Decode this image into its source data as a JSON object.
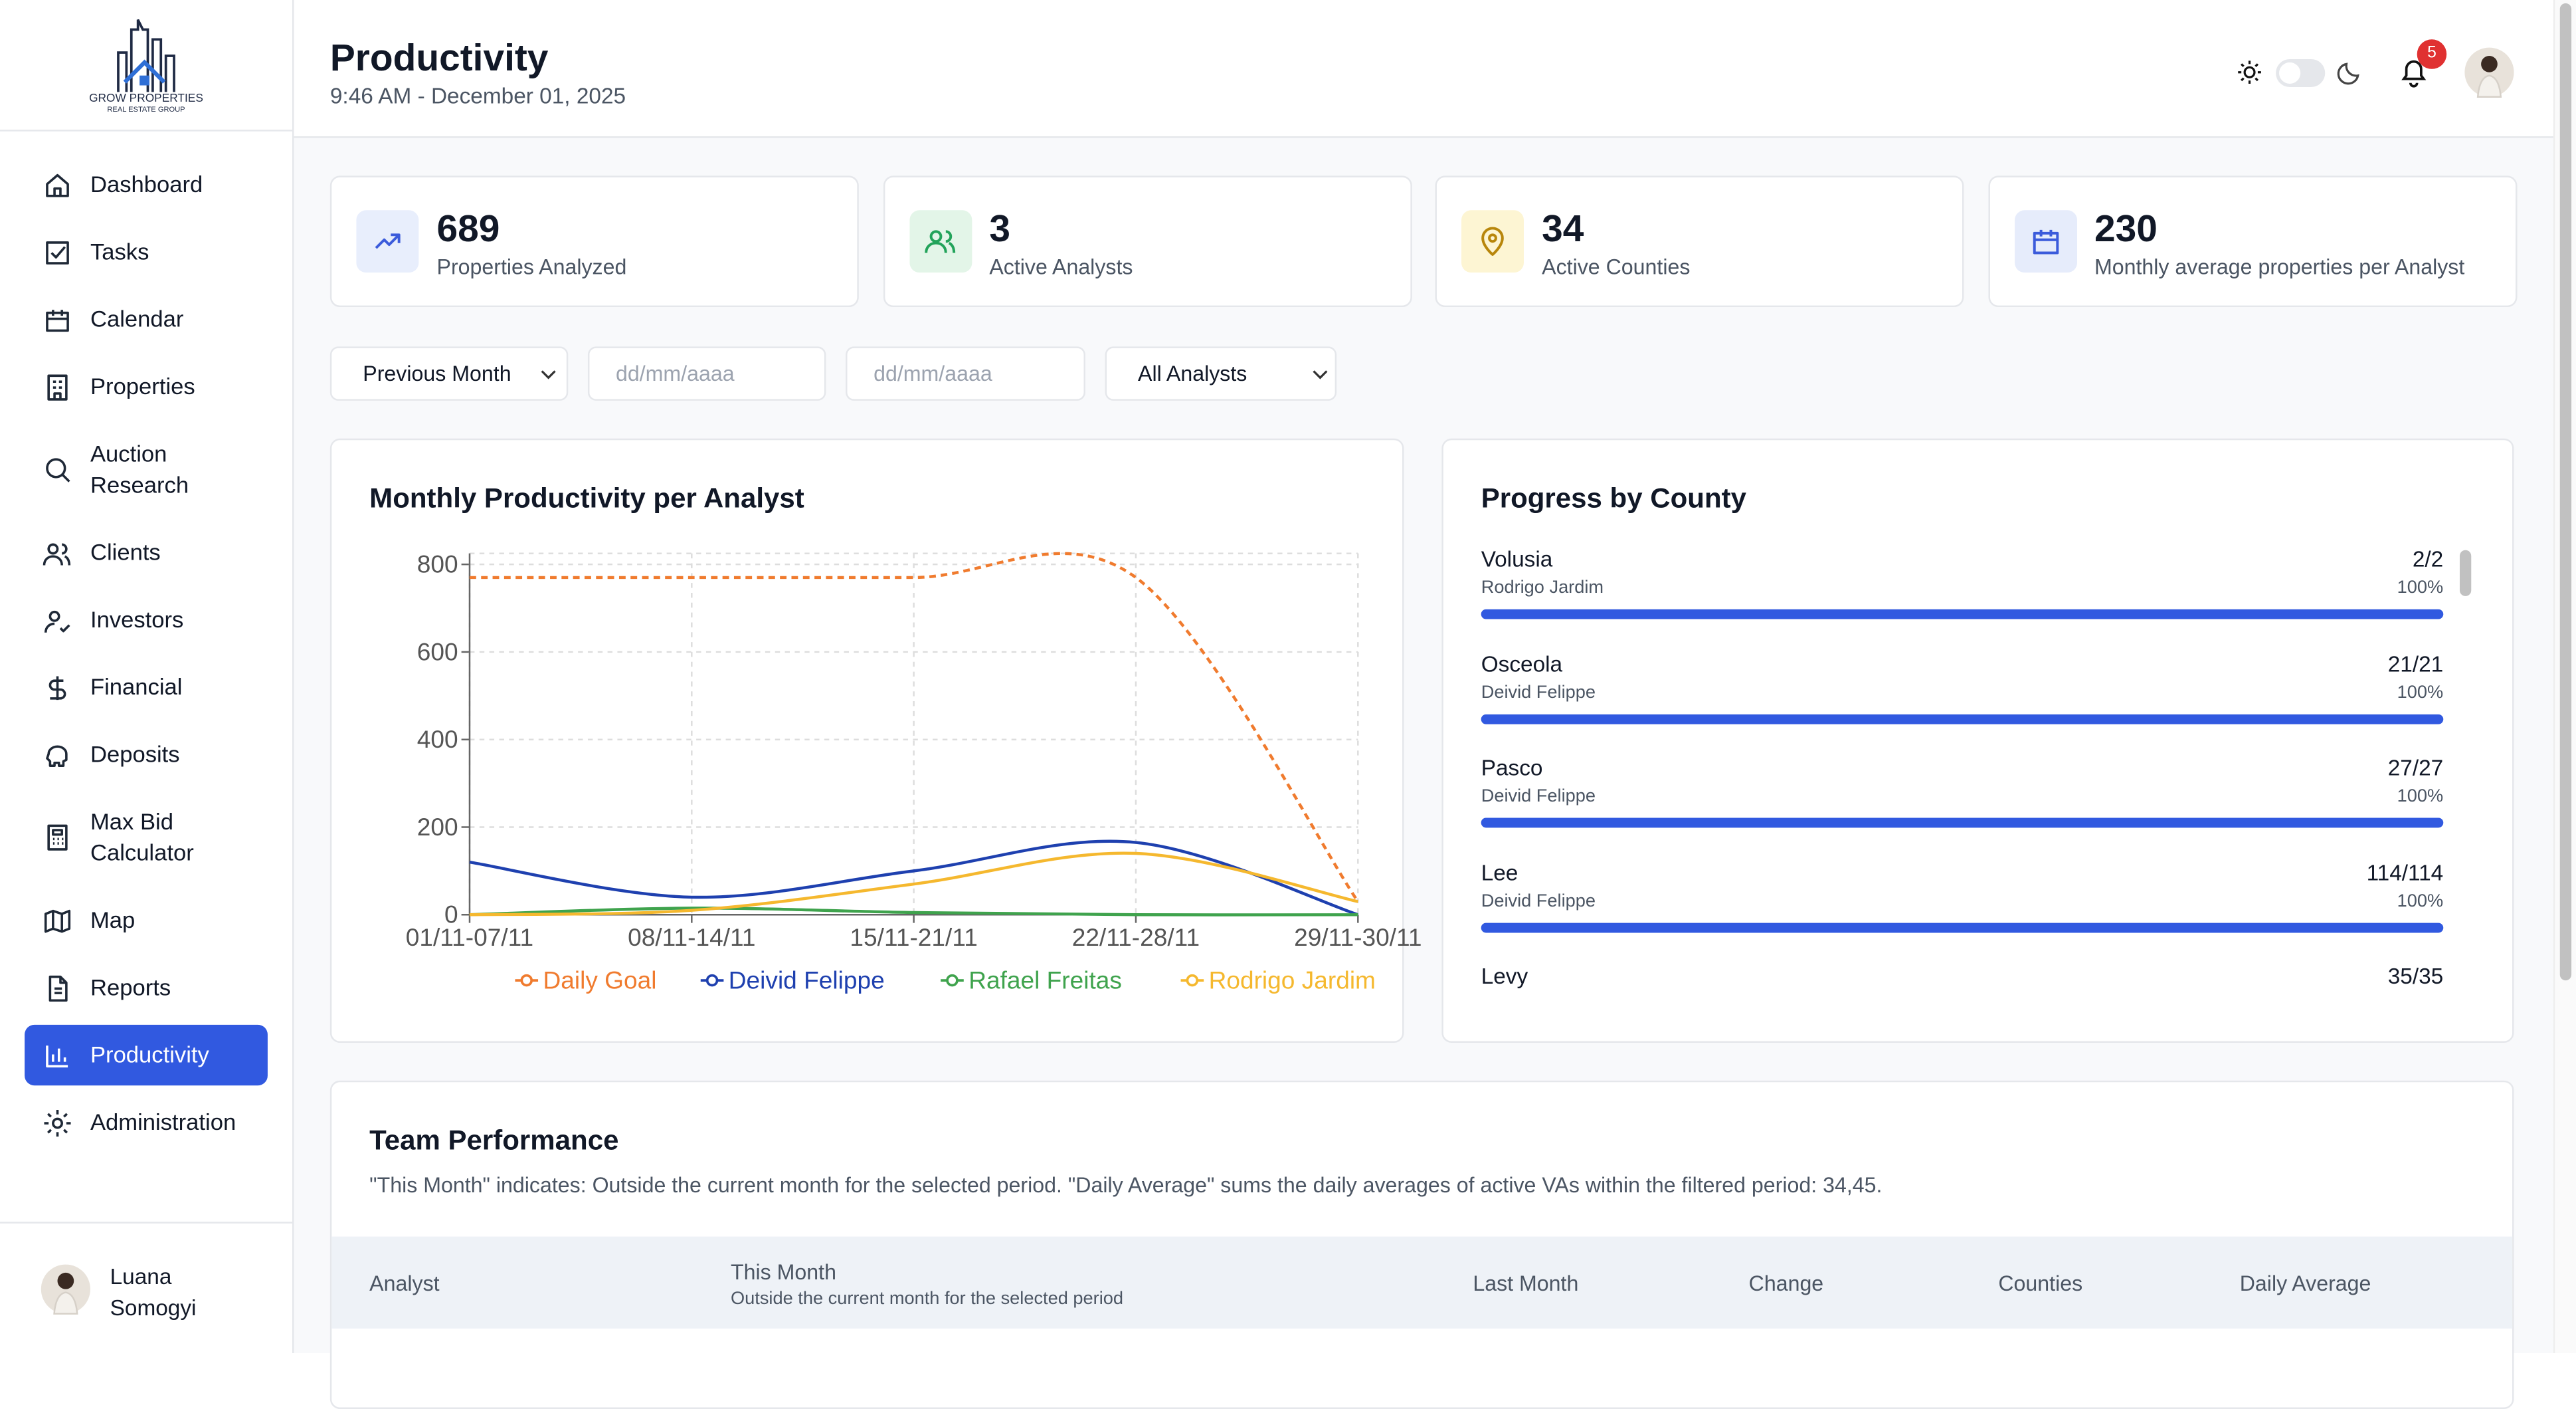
{
  "sidebar": {
    "logo": {
      "name": "GROW PROPERTIES",
      "tagline": "REAL ESTATE GROUP"
    },
    "nav": [
      {
        "label": "Dashboard"
      },
      {
        "label": "Tasks"
      },
      {
        "label": "Calendar"
      },
      {
        "label": "Properties"
      },
      {
        "label": "Auction Research"
      },
      {
        "label": "Clients"
      },
      {
        "label": "Investors"
      },
      {
        "label": "Financial"
      },
      {
        "label": "Deposits"
      },
      {
        "label": "Max Bid Calculator"
      },
      {
        "label": "Map"
      },
      {
        "label": "Reports"
      },
      {
        "label": "Productivity",
        "active": true
      },
      {
        "label": "Administration"
      }
    ],
    "user": "Luana Somogyi"
  },
  "header": {
    "title": "Productivity",
    "subtitle": "9:46 AM - December 01, 2025",
    "notifications": 5
  },
  "stats": [
    {
      "value": 689,
      "label": "Properties Analyzed"
    },
    {
      "value": 3,
      "label": "Active Analysts"
    },
    {
      "value": 34,
      "label": "Active Counties"
    },
    {
      "value": 230,
      "label": "Monthly average properties per Analyst"
    }
  ],
  "filters": {
    "period": "Previous Month",
    "start_date": "dd/mm/aaaa",
    "end_date": "dd/mm/aaaa",
    "analyst": "All Analysts"
  },
  "chart_data": {
    "type": "line",
    "title": "Monthly Productivity per Analyst",
    "categories": [
      "01/11-07/11",
      "08/11-14/11",
      "15/11-21/11",
      "22/11-28/11",
      "29/11-30/11"
    ],
    "series": [
      {
        "name": "Daily Goal",
        "color": "#f07b2e",
        "dashed": true,
        "values": [
          770,
          770,
          770,
          770,
          30
        ]
      },
      {
        "name": "Deivid Felippe",
        "color": "#1e40af",
        "values": [
          120,
          40,
          100,
          165,
          0
        ]
      },
      {
        "name": "Rafael Freitas",
        "color": "#3fa34d",
        "values": [
          0,
          15,
          5,
          0,
          0
        ]
      },
      {
        "name": "Rodrigo Jardim",
        "color": "#f5b82e",
        "values": [
          0,
          10,
          70,
          140,
          30
        ]
      }
    ],
    "ylim": [
      0,
      825
    ],
    "yticks": [
      0,
      200,
      400,
      600,
      800
    ],
    "grid": true,
    "legend": "bottom"
  },
  "county_progress": {
    "title": "Progress by County",
    "items": [
      {
        "county": "Volusia",
        "analyst": "Rodrigo Jardim",
        "progress": "2/2",
        "percent": {
          "value": 100,
          "label": "100%"
        }
      },
      {
        "county": "Osceola",
        "analyst": "Deivid Felippe",
        "progress": "21/21",
        "percent": {
          "value": 100,
          "label": "100%"
        }
      },
      {
        "county": "Pasco",
        "analyst": "Deivid Felippe",
        "progress": "27/27",
        "percent": {
          "value": 100,
          "label": "100%"
        }
      },
      {
        "county": "Lee",
        "analyst": "Deivid Felippe",
        "progress": "114/114",
        "percent": {
          "value": 100,
          "label": "100%"
        }
      },
      {
        "county": "Levy",
        "progress": "35/35"
      }
    ]
  },
  "team_performance": {
    "title": "Team Performance",
    "description": "\"This Month\" indicates: Outside the current month for the selected period. \"Daily Average\" sums the daily averages of active VAs within the filtered period: 34,45.",
    "columns": [
      {
        "label": "Analyst"
      },
      {
        "label": "This Month",
        "note": "Outside the current month for the selected period"
      },
      {
        "label": "Last Month"
      },
      {
        "label": "Change"
      },
      {
        "label": "Counties"
      },
      {
        "label": "Daily Average"
      }
    ]
  }
}
